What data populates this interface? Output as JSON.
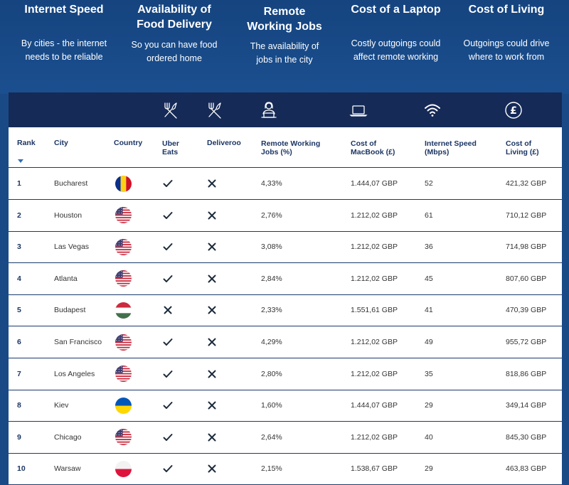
{
  "features": [
    {
      "title": "Internet Speed",
      "desc": "By cities - the internet needs to be reliable"
    },
    {
      "title": "Availability of Food Delivery",
      "desc": "So you can have food ordered home"
    },
    {
      "title": "Remote Working Jobs",
      "desc": "The availability of jobs in the city"
    },
    {
      "title": "Cost of a Laptop",
      "desc": "Costly outgoings could affect remote working"
    },
    {
      "title": "Cost of Living",
      "desc": "Outgoings could drive where to work from"
    }
  ],
  "icons": [
    "fork-knife-icon",
    "fork-knife-icon",
    "remote-worker-icon",
    "laptop-icon",
    "wifi-icon",
    "pound-icon"
  ],
  "columns": {
    "rank": "Rank",
    "city": "City",
    "country": "Country",
    "uber": "Uber Eats",
    "deliveroo": "Deliveroo",
    "remote": "Remote Working Jobs (%)",
    "macbook": "Cost of MacBook (£)",
    "internet": "Internet Speed (Mbps)",
    "living": "Cost of Living (£)"
  },
  "colors": {
    "header_band": "#152a57",
    "page_bg": "#1a4a86",
    "text_dark": "#1b3564"
  },
  "rows": [
    {
      "rank": "1",
      "city": "Bucharest",
      "flag": "romania",
      "uber": true,
      "deliveroo": false,
      "remote": "4,33%",
      "macbook": "1.444,07 GBP",
      "internet": "52",
      "living": "421,32 GBP"
    },
    {
      "rank": "2",
      "city": "Houston",
      "flag": "usa",
      "uber": true,
      "deliveroo": false,
      "remote": "2,76%",
      "macbook": "1.212,02 GBP",
      "internet": "61",
      "living": "710,12 GBP"
    },
    {
      "rank": "3",
      "city": "Las Vegas",
      "flag": "usa",
      "uber": true,
      "deliveroo": false,
      "remote": "3,08%",
      "macbook": "1.212,02 GBP",
      "internet": "36",
      "living": "714,98 GBP"
    },
    {
      "rank": "4",
      "city": "Atlanta",
      "flag": "usa",
      "uber": true,
      "deliveroo": false,
      "remote": "2,84%",
      "macbook": "1.212,02 GBP",
      "internet": "45",
      "living": "807,60 GBP"
    },
    {
      "rank": "5",
      "city": "Budapest",
      "flag": "hungary",
      "uber": false,
      "deliveroo": false,
      "remote": "2,33%",
      "macbook": "1.551,61 GBP",
      "internet": "41",
      "living": "470,39 GBP"
    },
    {
      "rank": "6",
      "city": "San Francisco",
      "flag": "usa",
      "uber": true,
      "deliveroo": false,
      "remote": "4,29%",
      "macbook": "1.212,02 GBP",
      "internet": "49",
      "living": "955,72 GBP"
    },
    {
      "rank": "7",
      "city": "Los Angeles",
      "flag": "usa",
      "uber": true,
      "deliveroo": false,
      "remote": "2,80%",
      "macbook": "1.212,02 GBP",
      "internet": "35",
      "living": "818,86 GBP"
    },
    {
      "rank": "8",
      "city": "Kiev",
      "flag": "ukraine",
      "uber": true,
      "deliveroo": false,
      "remote": "1,60%",
      "macbook": "1.444,07 GBP",
      "internet": "29",
      "living": "349,14 GBP"
    },
    {
      "rank": "9",
      "city": "Chicago",
      "flag": "usa",
      "uber": true,
      "deliveroo": false,
      "remote": "2,64%",
      "macbook": "1.212,02 GBP",
      "internet": "40",
      "living": "845,30 GBP"
    },
    {
      "rank": "10",
      "city": "Warsaw",
      "flag": "poland",
      "uber": true,
      "deliveroo": false,
      "remote": "2,15%",
      "macbook": "1.538,67 GBP",
      "internet": "29",
      "living": "463,83 GBP"
    }
  ]
}
